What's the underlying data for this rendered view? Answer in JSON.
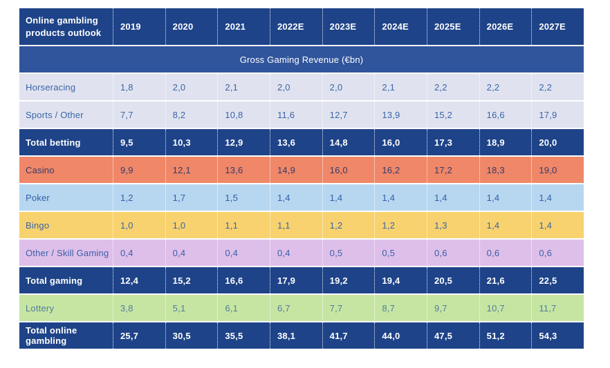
{
  "colors": {
    "header_bg": "#1e4388",
    "header_fg": "#ffffff",
    "banner_bg": "#30559c",
    "banner_fg": "#ffffff",
    "total_bg": "#1e4388",
    "total_fg": "#ffffff",
    "light_row_bg": "#e0e3ef",
    "light_row_fg": "#3a64a8",
    "casino_bg": "#ef8768",
    "poker_bg": "#b7d7f0",
    "bingo_bg": "#f8d26e",
    "other_bg": "#debfe9",
    "lottery_bg": "#c6e5a2"
  },
  "chart_data": {
    "type": "table",
    "title": "Online gambling products outlook",
    "banner": "Gross Gaming Revenue (€bn)",
    "columns": [
      "2019",
      "2020",
      "2021",
      "2022E",
      "2023E",
      "2024E",
      "2025E",
      "2026E",
      "2027E"
    ],
    "rows": [
      {
        "label": "Horseracing",
        "values": [
          "1,8",
          "2,0",
          "2,1",
          "2,0",
          "2,0",
          "2,1",
          "2,2",
          "2,2",
          "2,2"
        ],
        "bg": "#e0e3ef",
        "fg": "#3a64a8"
      },
      {
        "label": "Sports / Other",
        "values": [
          "7,7",
          "8,2",
          "10,8",
          "11,6",
          "12,7",
          "13,9",
          "15,2",
          "16,6",
          "17,9"
        ],
        "bg": "#e0e3ef",
        "fg": "#3a64a8"
      },
      {
        "label": "Total betting",
        "values": [
          "9,5",
          "10,3",
          "12,9",
          "13,6",
          "14,8",
          "16,0",
          "17,3",
          "18,9",
          "20,0"
        ],
        "bg": "#1e4388",
        "fg": "#ffffff",
        "row_class": "total"
      },
      {
        "label": "Casino",
        "values": [
          "9,9",
          "12,1",
          "13,6",
          "14,9",
          "16,0",
          "16,2",
          "17,2",
          "18,3",
          "19,0"
        ],
        "bg": "#ef8768",
        "fg": "#333a6b"
      },
      {
        "label": "Poker",
        "values": [
          "1,2",
          "1,7",
          "1,5",
          "1,4",
          "1,4",
          "1,4",
          "1,4",
          "1,4",
          "1,4"
        ],
        "bg": "#b7d7f0",
        "fg": "#2f5ea6"
      },
      {
        "label": "Bingo",
        "values": [
          "1,0",
          "1,0",
          "1,1",
          "1,1",
          "1,2",
          "1,2",
          "1,3",
          "1,4",
          "1,4"
        ],
        "bg": "#f8d26e",
        "fg": "#3a64a8"
      },
      {
        "label": "Other / Skill Gaming",
        "values": [
          "0,4",
          "0,4",
          "0,4",
          "0,4",
          "0,5",
          "0,5",
          "0,6",
          "0,6",
          "0,6"
        ],
        "bg": "#debfe9",
        "fg": "#3b5fa8"
      },
      {
        "label": "Total gaming",
        "values": [
          "12,4",
          "15,2",
          "16,6",
          "17,9",
          "19,2",
          "19,4",
          "20,5",
          "21,6",
          "22,5"
        ],
        "bg": "#1e4388",
        "fg": "#ffffff",
        "row_class": "total"
      },
      {
        "label": "Lottery",
        "values": [
          "3,8",
          "5,1",
          "6,1",
          "6,7",
          "7,7",
          "8,7",
          "9,7",
          "10,7",
          "11,7"
        ],
        "bg": "#c6e5a2",
        "fg": "#527c9e"
      },
      {
        "label": "Total online gambling",
        "values": [
          "25,7",
          "30,5",
          "35,5",
          "38,1",
          "41,7",
          "44,0",
          "47,5",
          "51,2",
          "54,3"
        ],
        "bg": "#1e4388",
        "fg": "#ffffff",
        "row_class": "total"
      }
    ]
  }
}
